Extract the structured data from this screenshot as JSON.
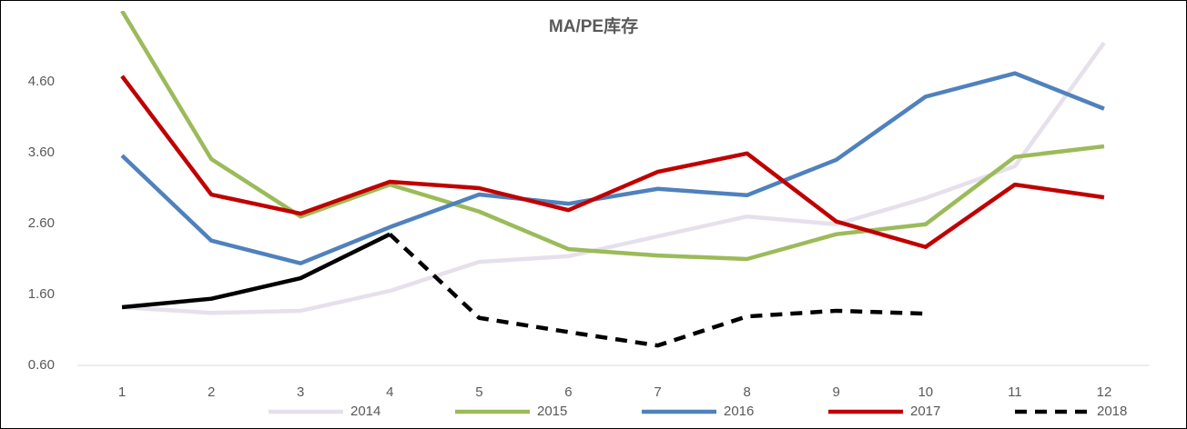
{
  "chart_data": {
    "type": "line",
    "title": "MA/PE库存",
    "categories": [
      "1",
      "2",
      "3",
      "4",
      "5",
      "6",
      "7",
      "8",
      "9",
      "10",
      "11",
      "12"
    ],
    "ylim": [
      0.6,
      5.6
    ],
    "yticks": [
      {
        "value": 0.6,
        "label": "0.60"
      },
      {
        "value": 1.6,
        "label": "1.60"
      },
      {
        "value": 2.6,
        "label": "2.60"
      },
      {
        "value": 3.6,
        "label": "3.60"
      },
      {
        "value": 4.6,
        "label": "4.60"
      }
    ],
    "grid": false,
    "legend": "bottom",
    "series": [
      {
        "name": "2014",
        "color": "#e6e0ec",
        "values": [
          1.42,
          1.34,
          1.37,
          1.65,
          2.06,
          2.14,
          2.42,
          2.7,
          2.59,
          2.96,
          3.41,
          5.15
        ]
      },
      {
        "name": "2015",
        "color": "#9bbb59",
        "values": [
          5.6,
          3.51,
          2.7,
          3.15,
          2.77,
          2.24,
          2.15,
          2.1,
          2.45,
          2.59,
          3.54,
          3.69
        ]
      },
      {
        "name": "2016",
        "color": "#4f81bd",
        "values": [
          3.56,
          2.36,
          2.04,
          2.55,
          3.01,
          2.88,
          3.09,
          3.0,
          3.5,
          4.39,
          4.72,
          4.22
        ]
      },
      {
        "name": "2017",
        "color": "#c00000",
        "values": [
          4.68,
          3.01,
          2.74,
          3.19,
          3.1,
          2.79,
          3.33,
          3.59,
          2.63,
          2.27,
          3.15,
          2.97
        ]
      },
      {
        "name": "2018",
        "color": "#000000",
        "dash_from": 3,
        "values": [
          1.42,
          1.54,
          1.83,
          2.45,
          1.27,
          1.07,
          0.88,
          1.29,
          1.37,
          1.33,
          null,
          null
        ]
      }
    ]
  }
}
